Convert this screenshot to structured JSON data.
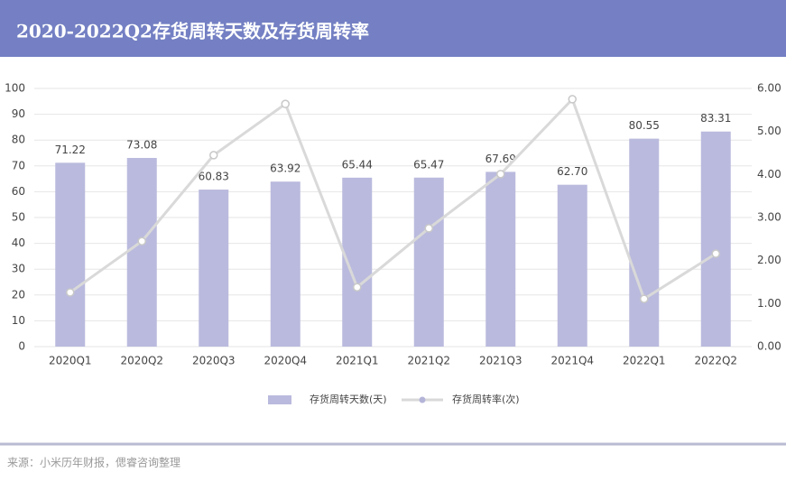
{
  "header": {
    "title": "2020-2022Q2存货周转天数及存货周转率"
  },
  "chart_data": {
    "type": "bar",
    "categories": [
      "2020Q1",
      "2020Q2",
      "2020Q3",
      "2020Q4",
      "2021Q1",
      "2021Q2",
      "2021Q3",
      "2021Q4",
      "2022Q1",
      "2022Q2"
    ],
    "series": [
      {
        "name": "存货周转天数(天)",
        "type": "bar",
        "color": "#babade",
        "values": [
          71.22,
          73.08,
          60.83,
          63.92,
          65.44,
          65.47,
          67.69,
          62.7,
          80.55,
          83.31
        ],
        "value_labels": [
          "71.22",
          "73.08",
          "60.83",
          "63.92",
          "65.44",
          "65.47",
          "67.69",
          "62.70",
          "80.55",
          "83.31"
        ]
      },
      {
        "name": "存货周转率(次)",
        "type": "line",
        "axis": "y2",
        "color": "#d9d9d9",
        "values": [
          1.26,
          2.45,
          4.45,
          5.64,
          1.38,
          2.75,
          4.01,
          5.75,
          1.11,
          2.16
        ]
      }
    ],
    "ylim": [
      0,
      100
    ],
    "yticks": [
      0,
      10,
      20,
      30,
      40,
      50,
      60,
      70,
      80,
      90,
      100
    ],
    "y2lim": [
      0,
      6
    ],
    "y2ticks": [
      {
        "value": 0,
        "label": "0.00"
      },
      {
        "value": 1,
        "label": "1.00"
      },
      {
        "value": 2,
        "label": "2.00"
      },
      {
        "value": 3,
        "label": "3.00"
      },
      {
        "value": 4,
        "label": "4.00"
      },
      {
        "value": 5,
        "label": "5.00"
      },
      {
        "value": 6,
        "label": "6.00"
      }
    ],
    "grid": true,
    "legend": "bottom"
  },
  "footer": {
    "source": "来源：小米历年财报，偲睿咨询整理"
  }
}
